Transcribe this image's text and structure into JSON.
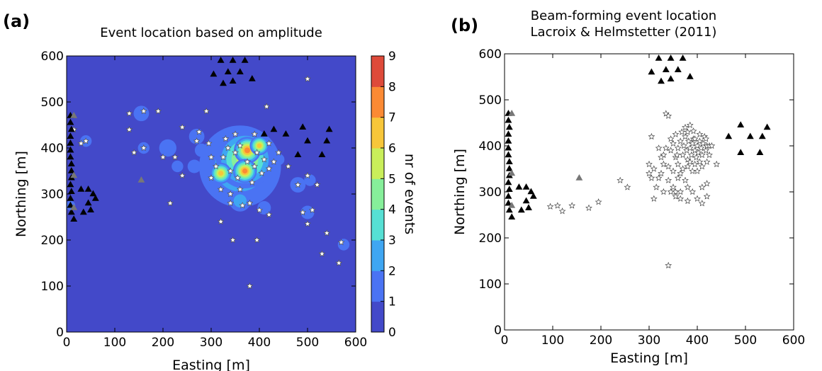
{
  "chart_data": [
    {
      "panel": "(a)",
      "type": "heatmap",
      "title": "Event location based on amplitude",
      "xlabel": "Easting [m]",
      "ylabel": "Northing [m]",
      "xlim": [
        0,
        600
      ],
      "ylim": [
        0,
        600
      ],
      "xticks": [
        "0",
        "100",
        "200",
        "300",
        "400",
        "500",
        "600"
      ],
      "yticks": [
        "0",
        "100",
        "200",
        "300",
        "400",
        "500",
        "600"
      ],
      "colorbar": {
        "label": "nr of events",
        "range": [
          0,
          9
        ],
        "ticks": [
          "0",
          "1",
          "2",
          "3",
          "4",
          "5",
          "6",
          "7",
          "8",
          "9"
        ],
        "colors": [
          "#4349c9",
          "#4a73f3",
          "#3fa6f2",
          "#56e0d4",
          "#86ef9a",
          "#c9ee5a",
          "#f7c63a",
          "#fb8a34",
          "#de4a3a"
        ]
      },
      "density_blobs": [
        {
          "x": 360,
          "y": 360,
          "r": 85,
          "level": 2
        },
        {
          "x": 370,
          "y": 375,
          "r": 60,
          "level": 5
        },
        {
          "x": 375,
          "y": 395,
          "r": 28,
          "level": 7
        },
        {
          "x": 370,
          "y": 350,
          "r": 25,
          "level": 7
        },
        {
          "x": 320,
          "y": 345,
          "r": 22,
          "level": 6
        },
        {
          "x": 400,
          "y": 405,
          "r": 20,
          "level": 6
        },
        {
          "x": 360,
          "y": 285,
          "r": 22,
          "level": 2
        },
        {
          "x": 410,
          "y": 270,
          "r": 14,
          "level": 1
        },
        {
          "x": 270,
          "y": 425,
          "r": 16,
          "level": 1
        },
        {
          "x": 280,
          "y": 395,
          "r": 14,
          "level": 1
        },
        {
          "x": 265,
          "y": 360,
          "r": 14,
          "level": 1
        },
        {
          "x": 210,
          "y": 400,
          "r": 18,
          "level": 1
        },
        {
          "x": 230,
          "y": 360,
          "r": 12,
          "level": 1
        },
        {
          "x": 160,
          "y": 400,
          "r": 12,
          "level": 1
        },
        {
          "x": 155,
          "y": 475,
          "r": 16,
          "level": 1
        },
        {
          "x": 40,
          "y": 415,
          "r": 12,
          "level": 1
        },
        {
          "x": 480,
          "y": 320,
          "r": 16,
          "level": 1
        },
        {
          "x": 505,
          "y": 330,
          "r": 12,
          "level": 1
        },
        {
          "x": 500,
          "y": 260,
          "r": 14,
          "level": 1
        },
        {
          "x": 440,
          "y": 375,
          "r": 12,
          "level": 1
        },
        {
          "x": 575,
          "y": 190,
          "r": 12,
          "level": 1
        },
        {
          "x": 8,
          "y": 275,
          "r": 10,
          "level": 1
        }
      ],
      "stars": [
        [
          380,
          100
        ],
        [
          500,
          550
        ],
        [
          415,
          490
        ],
        [
          290,
          480
        ],
        [
          190,
          480
        ],
        [
          130,
          475
        ],
        [
          160,
          480
        ],
        [
          130,
          440
        ],
        [
          240,
          445
        ],
        [
          270,
          415
        ],
        [
          275,
          435
        ],
        [
          295,
          410
        ],
        [
          300,
          380
        ],
        [
          330,
          420
        ],
        [
          350,
          430
        ],
        [
          390,
          430
        ],
        [
          420,
          410
        ],
        [
          440,
          390
        ],
        [
          430,
          370
        ],
        [
          460,
          360
        ],
        [
          310,
          360
        ],
        [
          300,
          335
        ],
        [
          320,
          310
        ],
        [
          340,
          300
        ],
        [
          360,
          310
        ],
        [
          385,
          325
        ],
        [
          405,
          345
        ],
        [
          420,
          355
        ],
        [
          340,
          280
        ],
        [
          365,
          275
        ],
        [
          380,
          280
        ],
        [
          400,
          265
        ],
        [
          420,
          255
        ],
        [
          480,
          320
        ],
        [
          500,
          340
        ],
        [
          520,
          320
        ],
        [
          490,
          260
        ],
        [
          510,
          265
        ],
        [
          500,
          235
        ],
        [
          540,
          215
        ],
        [
          570,
          195
        ],
        [
          530,
          170
        ],
        [
          565,
          150
        ],
        [
          320,
          240
        ],
        [
          345,
          200
        ],
        [
          395,
          200
        ],
        [
          240,
          340
        ],
        [
          225,
          380
        ],
        [
          200,
          380
        ],
        [
          160,
          400
        ],
        [
          140,
          390
        ],
        [
          215,
          280
        ],
        [
          40,
          415
        ],
        [
          30,
          410
        ],
        [
          15,
          440
        ],
        [
          350,
          390
        ],
        [
          360,
          405
        ],
        [
          375,
          370
        ],
        [
          340,
          350
        ],
        [
          355,
          335
        ],
        [
          390,
          360
        ],
        [
          395,
          390
        ],
        [
          410,
          375
        ],
        [
          325,
          380
        ],
        [
          335,
          400
        ]
      ],
      "black_triangles": [
        [
          8,
          470
        ],
        [
          8,
          455
        ],
        [
          10,
          440
        ],
        [
          8,
          425
        ],
        [
          8,
          410
        ],
        [
          8,
          395
        ],
        [
          8,
          380
        ],
        [
          10,
          365
        ],
        [
          10,
          350
        ],
        [
          10,
          335
        ],
        [
          8,
          320
        ],
        [
          10,
          305
        ],
        [
          8,
          290
        ],
        [
          8,
          275
        ],
        [
          10,
          260
        ],
        [
          15,
          245
        ],
        [
          30,
          310
        ],
        [
          45,
          310
        ],
        [
          55,
          300
        ],
        [
          60,
          290
        ],
        [
          45,
          280
        ],
        [
          35,
          260
        ],
        [
          50,
          265
        ],
        [
          320,
          590
        ],
        [
          345,
          590
        ],
        [
          370,
          590
        ],
        [
          305,
          560
        ],
        [
          335,
          565
        ],
        [
          360,
          565
        ],
        [
          325,
          540
        ],
        [
          345,
          545
        ],
        [
          385,
          550
        ],
        [
          410,
          430
        ],
        [
          430,
          440
        ],
        [
          455,
          430
        ],
        [
          490,
          445
        ],
        [
          545,
          440
        ],
        [
          500,
          415
        ],
        [
          540,
          415
        ],
        [
          480,
          385
        ],
        [
          530,
          385
        ]
      ],
      "gray_triangles": [
        [
          15,
          470
        ],
        [
          15,
          340
        ],
        [
          155,
          330
        ],
        [
          15,
          270
        ]
      ]
    },
    {
      "panel": "(b)",
      "type": "scatter",
      "title_lines": [
        "Beam-forming event location",
        "Lacroix & Helmstetter (2011)"
      ],
      "xlabel": "Easting [m]",
      "ylabel": "Northing [m]",
      "xlim": [
        0,
        600
      ],
      "ylim": [
        0,
        600
      ],
      "xticks": [
        "0",
        "100",
        "200",
        "300",
        "400",
        "500",
        "600"
      ],
      "yticks": [
        "0",
        "100",
        "200",
        "300",
        "400",
        "500",
        "600"
      ],
      "stars": [
        [
          340,
          140
        ],
        [
          95,
          268
        ],
        [
          110,
          270
        ],
        [
          120,
          258
        ],
        [
          140,
          270
        ],
        [
          175,
          265
        ],
        [
          195,
          278
        ],
        [
          240,
          325
        ],
        [
          255,
          310
        ],
        [
          305,
          420
        ],
        [
          335,
          470
        ],
        [
          340,
          465
        ],
        [
          310,
          285
        ],
        [
          330,
          300
        ],
        [
          350,
          310
        ],
        [
          300,
          360
        ],
        [
          310,
          350
        ],
        [
          325,
          340
        ],
        [
          320,
          330
        ],
        [
          340,
          325
        ],
        [
          330,
          360
        ],
        [
          360,
          330
        ],
        [
          375,
          325
        ],
        [
          380,
          310
        ],
        [
          390,
          300
        ],
        [
          410,
          310
        ],
        [
          420,
          318
        ],
        [
          355,
          290
        ],
        [
          365,
          285
        ],
        [
          380,
          280
        ],
        [
          400,
          285
        ],
        [
          410,
          275
        ],
        [
          420,
          290
        ],
        [
          330,
          380
        ],
        [
          345,
          390
        ],
        [
          350,
          405
        ],
        [
          355,
          375
        ],
        [
          360,
          395
        ],
        [
          365,
          410
        ],
        [
          370,
          380
        ],
        [
          372,
          400
        ],
        [
          375,
          420
        ],
        [
          378,
          390
        ],
        [
          380,
          370
        ],
        [
          382,
          410
        ],
        [
          385,
          395
        ],
        [
          388,
          380
        ],
        [
          390,
          405
        ],
        [
          392,
          415
        ],
        [
          395,
          390
        ],
        [
          398,
          375
        ],
        [
          400,
          400
        ],
        [
          402,
          385
        ],
        [
          405,
          410
        ],
        [
          408,
          395
        ],
        [
          410,
          380
        ],
        [
          412,
          405
        ],
        [
          415,
          420
        ],
        [
          418,
          390
        ],
        [
          420,
          400
        ],
        [
          360,
          360
        ],
        [
          370,
          350
        ],
        [
          380,
          355
        ],
        [
          390,
          345
        ],
        [
          395,
          360
        ],
        [
          400,
          345
        ],
        [
          405,
          365
        ],
        [
          410,
          355
        ],
        [
          365,
          340
        ],
        [
          350,
          345
        ],
        [
          340,
          355
        ],
        [
          335,
          395
        ],
        [
          345,
          415
        ],
        [
          355,
          425
        ],
        [
          368,
          430
        ],
        [
          380,
          430
        ],
        [
          392,
          432
        ],
        [
          405,
          425
        ],
        [
          418,
          415
        ],
        [
          425,
          400
        ],
        [
          425,
          380
        ],
        [
          420,
          365
        ],
        [
          358,
          380
        ],
        [
          385,
          365
        ],
        [
          395,
          415
        ],
        [
          375,
          440
        ],
        [
          385,
          445
        ],
        [
          320,
          395
        ],
        [
          325,
          375
        ],
        [
          315,
          310
        ],
        [
          300,
          340
        ],
        [
          305,
          330
        ],
        [
          430,
          400
        ],
        [
          440,
          360
        ],
        [
          345,
          300
        ],
        [
          355,
          300
        ],
        [
          365,
          300
        ]
      ],
      "black_triangles": [
        [
          8,
          470
        ],
        [
          8,
          455
        ],
        [
          10,
          440
        ],
        [
          8,
          425
        ],
        [
          8,
          410
        ],
        [
          8,
          395
        ],
        [
          8,
          380
        ],
        [
          10,
          365
        ],
        [
          10,
          350
        ],
        [
          10,
          335
        ],
        [
          8,
          320
        ],
        [
          10,
          305
        ],
        [
          8,
          290
        ],
        [
          8,
          275
        ],
        [
          10,
          260
        ],
        [
          15,
          245
        ],
        [
          30,
          310
        ],
        [
          45,
          310
        ],
        [
          55,
          300
        ],
        [
          60,
          290
        ],
        [
          45,
          280
        ],
        [
          35,
          260
        ],
        [
          50,
          265
        ],
        [
          320,
          590
        ],
        [
          345,
          590
        ],
        [
          370,
          590
        ],
        [
          305,
          560
        ],
        [
          335,
          565
        ],
        [
          360,
          565
        ],
        [
          325,
          540
        ],
        [
          345,
          545
        ],
        [
          385,
          550
        ],
        [
          490,
          445
        ],
        [
          545,
          440
        ],
        [
          465,
          420
        ],
        [
          510,
          420
        ],
        [
          535,
          420
        ],
        [
          490,
          385
        ],
        [
          530,
          385
        ]
      ],
      "gray_triangles": [
        [
          15,
          470
        ],
        [
          15,
          340
        ],
        [
          155,
          330
        ],
        [
          15,
          270
        ]
      ]
    }
  ]
}
